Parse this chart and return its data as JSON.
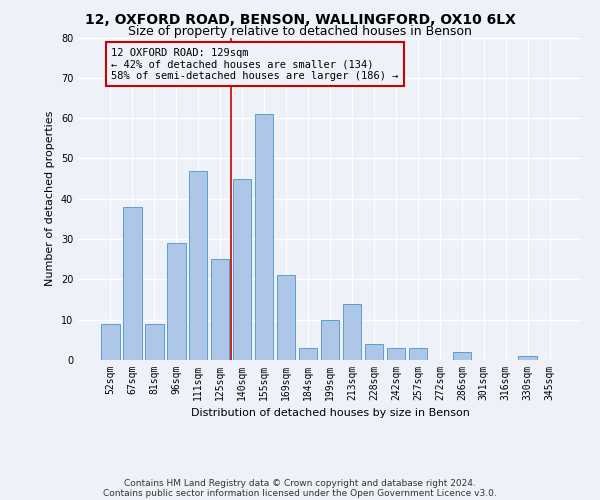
{
  "title1": "12, OXFORD ROAD, BENSON, WALLINGFORD, OX10 6LX",
  "title2": "Size of property relative to detached houses in Benson",
  "xlabel": "Distribution of detached houses by size in Benson",
  "ylabel": "Number of detached properties",
  "categories": [
    "52sqm",
    "67sqm",
    "81sqm",
    "96sqm",
    "111sqm",
    "125sqm",
    "140sqm",
    "155sqm",
    "169sqm",
    "184sqm",
    "199sqm",
    "213sqm",
    "228sqm",
    "242sqm",
    "257sqm",
    "272sqm",
    "286sqm",
    "301sqm",
    "316sqm",
    "330sqm",
    "345sqm"
  ],
  "values": [
    9,
    38,
    9,
    29,
    47,
    25,
    45,
    61,
    21,
    3,
    10,
    14,
    4,
    3,
    3,
    0,
    2,
    0,
    0,
    1,
    0
  ],
  "bar_color": "#aec6e8",
  "bar_edge_color": "#5a9fd4",
  "vline_x": 5.5,
  "vline_color": "#cc0000",
  "annotation_line1": "12 OXFORD ROAD: 129sqm",
  "annotation_line2": "← 42% of detached houses are smaller (134)",
  "annotation_line3": "58% of semi-detached houses are larger (186) →",
  "annotation_box_color": "#cc0000",
  "ylim": [
    0,
    80
  ],
  "yticks": [
    0,
    10,
    20,
    30,
    40,
    50,
    60,
    70,
    80
  ],
  "footer1": "Contains HM Land Registry data © Crown copyright and database right 2024.",
  "footer2": "Contains public sector information licensed under the Open Government Licence v3.0.",
  "background_color": "#eef2f8",
  "grid_color": "#ffffff",
  "title_fontsize": 10,
  "subtitle_fontsize": 9,
  "axis_label_fontsize": 8,
  "tick_fontsize": 7,
  "footer_fontsize": 6.5,
  "ann_fontsize": 7.5
}
